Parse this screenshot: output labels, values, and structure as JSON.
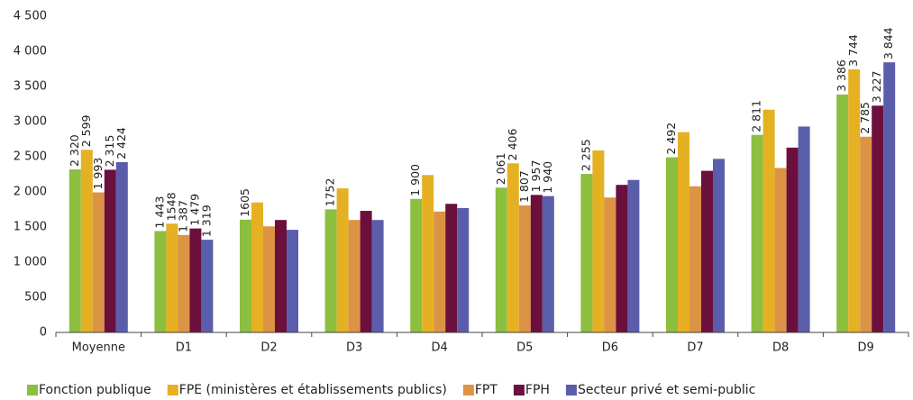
{
  "chart_data": {
    "type": "bar",
    "categories": [
      "Moyenne",
      "D1",
      "D2",
      "D3",
      "D4",
      "D5",
      "D6",
      "D7",
      "D8",
      "D9"
    ],
    "series": [
      {
        "name": "Fonction publique",
        "color": "#8cbf3f",
        "values": [
          2320,
          1443,
          1605,
          1752,
          1900,
          2061,
          2255,
          2492,
          2811,
          3386
        ],
        "value_labels": [
          "2 320",
          "1 443",
          "1605",
          "1752",
          "1 900",
          "2 061",
          "2 255",
          "2 492",
          "2 811",
          "3 386"
        ]
      },
      {
        "name": "FPE (ministères et établissements publics)",
        "color": "#e5b123",
        "values": [
          2599,
          1548,
          1850,
          2050,
          2240,
          2406,
          2590,
          2850,
          3170,
          3744
        ],
        "value_labels": [
          "2 599",
          "1548",
          null,
          null,
          null,
          "2 406",
          null,
          null,
          null,
          "3 744"
        ]
      },
      {
        "name": "FPT",
        "color": "#dd9344",
        "values": [
          1993,
          1387,
          1510,
          1600,
          1720,
          1807,
          1920,
          2080,
          2340,
          2785
        ],
        "value_labels": [
          "1 993",
          "1 387",
          null,
          null,
          null,
          "1 807",
          null,
          null,
          null,
          "2 785"
        ]
      },
      {
        "name": "FPH",
        "color": "#6b0f3c",
        "values": [
          2315,
          1479,
          1600,
          1730,
          1830,
          1957,
          2100,
          2300,
          2630,
          3227
        ],
        "value_labels": [
          "2 315",
          "1 479",
          null,
          null,
          null,
          "1 957",
          null,
          null,
          null,
          "3 227"
        ]
      },
      {
        "name": "Secteur privé et semi-public",
        "color": "#5a5eaa",
        "values": [
          2424,
          1319,
          1460,
          1600,
          1770,
          1940,
          2170,
          2470,
          2930,
          3844
        ],
        "value_labels": [
          "2 424",
          "1 319",
          null,
          null,
          null,
          "1 940",
          null,
          null,
          null,
          "3 844"
        ]
      }
    ],
    "ylim": [
      0,
      4500
    ],
    "yticks": [
      0,
      500,
      {
        "value": 1000,
        "label": "1 000"
      },
      {
        "value": 1500,
        "label": "1 500"
      },
      {
        "value": 2000,
        "label": "2 000"
      },
      {
        "value": 2500,
        "label": "2 500"
      },
      {
        "value": 3000,
        "label": "3 000"
      },
      {
        "value": 3500,
        "label": "3 500"
      },
      {
        "value": 4000,
        "label": "4 000"
      },
      {
        "value": 4500,
        "label": "4 500"
      }
    ],
    "grid": false
  }
}
